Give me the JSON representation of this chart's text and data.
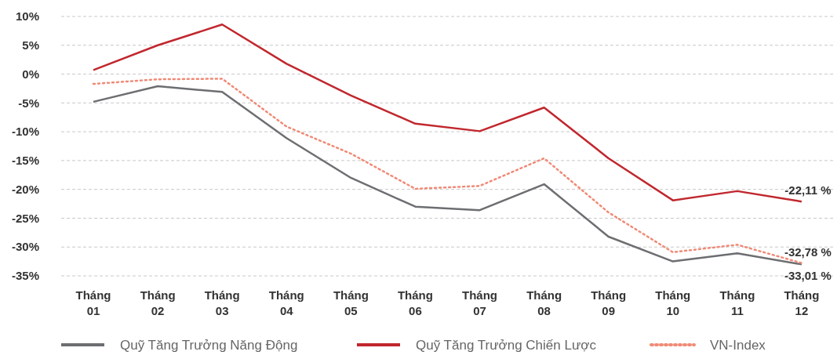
{
  "chart_data": {
    "type": "line",
    "categories": [
      "Tháng 01",
      "Tháng 02",
      "Tháng 03",
      "Tháng 04",
      "Tháng 05",
      "Tháng 06",
      "Tháng 07",
      "Tháng 08",
      "Tháng 09",
      "Tháng 10",
      "Tháng 11",
      "Tháng 12"
    ],
    "series": [
      {
        "name": "Quỹ Tăng Trưởng Năng Động",
        "color": "#6d6e71",
        "line_style": "solid",
        "values": [
          -4.8,
          -2.1,
          -3.1,
          -11.1,
          -18,
          -23,
          -23.6,
          -19.1,
          -28.2,
          -32.5,
          -31.1,
          -33.01
        ],
        "value_labels": [
          null,
          null,
          null,
          null,
          null,
          null,
          null,
          null,
          null,
          null,
          null,
          "-33,01 %"
        ]
      },
      {
        "name": "Quỹ Tăng Trưởng Chiến Lược",
        "color": "#c1272d",
        "line_style": "solid",
        "values": [
          0.7,
          5,
          8.6,
          1.8,
          -3.7,
          -8.6,
          -9.9,
          -5.8,
          -14.6,
          -21.9,
          -20.3,
          -22.11
        ],
        "value_labels": [
          null,
          null,
          null,
          null,
          null,
          null,
          null,
          null,
          null,
          null,
          null,
          "-22,11 %"
        ]
      },
      {
        "name": "VN-Index",
        "color": "#f08a76",
        "line_style": "dotted",
        "values": [
          -1.7,
          -0.9,
          -0.8,
          -9.1,
          -13.8,
          -19.9,
          -19.4,
          -14.6,
          -24,
          -30.9,
          -29.6,
          -32.78
        ],
        "value_labels": [
          null,
          null,
          null,
          null,
          null,
          null,
          null,
          null,
          null,
          null,
          null,
          "-32,78 %"
        ]
      }
    ],
    "ylim": [
      -35,
      10
    ],
    "yticks": [
      {
        "value": 10,
        "label": "10%"
      },
      {
        "value": 5,
        "label": "5%"
      },
      {
        "value": 0,
        "label": "0%"
      },
      {
        "value": -5,
        "label": "-5%"
      },
      {
        "value": -10,
        "label": "-10%"
      },
      {
        "value": -15,
        "label": "-15%"
      },
      {
        "value": -20,
        "label": "-20%"
      },
      {
        "value": -25,
        "label": "-25%"
      },
      {
        "value": -30,
        "label": "-30%"
      },
      {
        "value": -35,
        "label": "-35%"
      }
    ],
    "grid": "y",
    "legend": "bottom",
    "marker": "none"
  }
}
